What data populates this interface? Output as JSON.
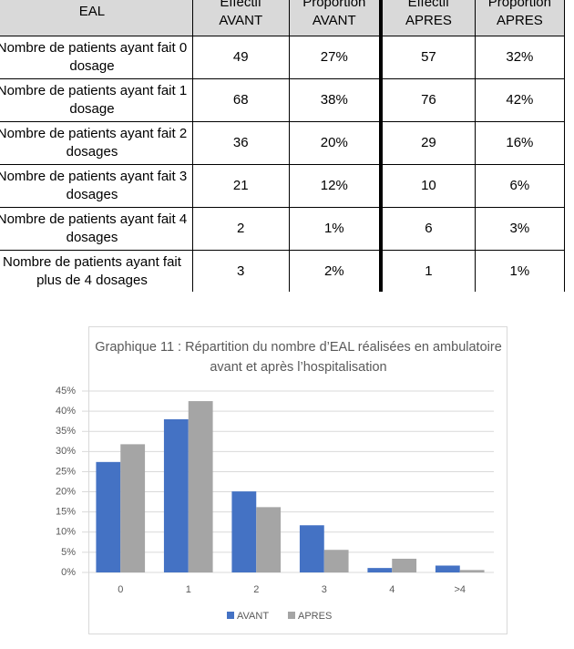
{
  "table": {
    "header": [
      "EAL",
      "Effectif AVANT",
      "Proportion AVANT",
      "Effectif APRES",
      "Proportion APRES"
    ],
    "rows": [
      [
        "Nombre de patients ayant fait 0 dosage",
        "49",
        "27%",
        "57",
        "32%"
      ],
      [
        "Nombre de patients ayant fait 1 dosage",
        "68",
        "38%",
        "76",
        "42%"
      ],
      [
        "Nombre de patients ayant fait 2 dosages",
        "36",
        "20%",
        "29",
        "16%"
      ],
      [
        "Nombre de patients ayant fait 3 dosages",
        "21",
        "12%",
        "10",
        "6%"
      ],
      [
        "Nombre de patients ayant fait 4 dosages",
        "2",
        "1%",
        "6",
        "3%"
      ],
      [
        "Nombre de patients ayant fait plus de 4 dosages",
        "3",
        "2%",
        "1",
        "1%"
      ]
    ]
  },
  "chart_data": {
    "type": "bar",
    "title": "Graphique 11 : Répartition du nombre d’EAL réalisées en ambulatoire avant et après l’hospitalisation",
    "categories": [
      "0",
      "1",
      "2",
      "3",
      "4",
      ">4"
    ],
    "series": [
      {
        "name": "AVANT",
        "color": "#4472c4",
        "values": [
          27.4,
          38.0,
          20.1,
          11.7,
          1.1,
          1.7
        ]
      },
      {
        "name": "APRES",
        "color": "#a5a5a5",
        "values": [
          31.8,
          42.5,
          16.2,
          5.6,
          3.4,
          0.6
        ]
      }
    ],
    "ylim": [
      0,
      45
    ],
    "yticks": [
      {
        "value": 0,
        "label": "0%"
      },
      {
        "value": 5,
        "label": "5%"
      },
      {
        "value": 10,
        "label": "10%"
      },
      {
        "value": 15,
        "label": "15%"
      },
      {
        "value": 20,
        "label": "20%"
      },
      {
        "value": 25,
        "label": "25%"
      },
      {
        "value": 30,
        "label": "30%"
      },
      {
        "value": 35,
        "label": "35%"
      },
      {
        "value": 40,
        "label": "40%"
      },
      {
        "value": 45,
        "label": "45%"
      }
    ],
    "grid": true,
    "legend": "bottom"
  }
}
